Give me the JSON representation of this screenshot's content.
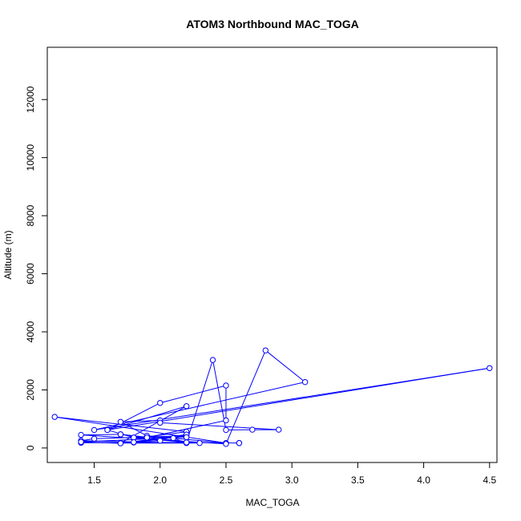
{
  "chart_data": {
    "type": "line",
    "title": "ATOM3 Northbound MAC_TOGA",
    "xlabel": "MAC_TOGA",
    "ylabel": "Altitude (m)",
    "xlim": [
      1.144,
      4.556
    ],
    "ylim": [
      -500,
      13800
    ],
    "xticks": [
      1.5,
      2.0,
      2.5,
      3.0,
      3.5,
      4.0,
      4.5
    ],
    "xtick_labels": [
      "1.5",
      "2.0",
      "2.5",
      "3.0",
      "3.5",
      "4.0",
      "4.5"
    ],
    "yticks": [
      0,
      2000,
      4000,
      6000,
      8000,
      10000,
      12000
    ],
    "ytick_labels": [
      "0",
      "2000",
      "4000",
      "6000",
      "8000",
      "10000",
      "12000"
    ],
    "series_color": "#0000ff",
    "grid": false,
    "legend": "none",
    "x": [
      2.6,
      2.6,
      2.2,
      1.4,
      1.8,
      2.2,
      1.5,
      1.4,
      2.2,
      2.1,
      1.9,
      2.2,
      1.2,
      2.5,
      1.9,
      1.7,
      2.0,
      2.0,
      2.9,
      2.7,
      2.5,
      2.4,
      2.2,
      1.8,
      1.6,
      2.0,
      2.5,
      2.5,
      1.9,
      1.7,
      1.4,
      2.5,
      2.8,
      3.1,
      1.5,
      4.5,
      1.6,
      2.2,
      1.7,
      2.3,
      1.7,
      2.0,
      1.8,
      2.2,
      1.7,
      1.4,
      2.2
    ],
    "y": [
      170,
      170,
      190,
      180,
      190,
      420,
      320,
      250,
      170,
      340,
      380,
      560,
      1070,
      170,
      420,
      900,
      950,
      870,
      630,
      630,
      620,
      3030,
      190,
      360,
      620,
      1550,
      2150,
      950,
      360,
      470,
      450,
      140,
      3360,
      2270,
      620,
      2750,
      620,
      1440,
      170,
      170,
      470,
      250,
      200,
      460,
      160,
      210,
      370
    ]
  }
}
